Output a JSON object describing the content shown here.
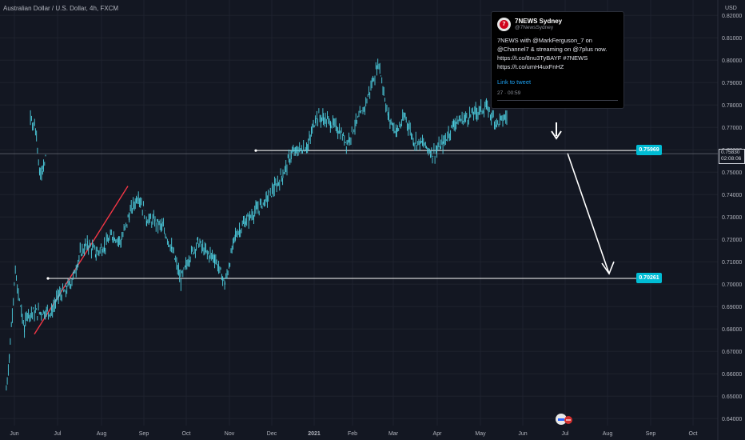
{
  "symbol_title": "Australian Dollar / U.S. Dollar, 4h, FXCM",
  "tweet": {
    "avatar": "7",
    "name": "7NEWS Sydney",
    "handle": "@7NewsSydney",
    "text": "7NEWS with @MarkFerguson_7 on @Channel7 & streaming on @7plus now. https://t.co/8nu3TyBAYF #7NEWS https://t.co/umH4uxFnHZ",
    "link": "Link to tweet",
    "time": "27 · 00:59"
  },
  "current_price": {
    "price": "0.75830",
    "countdown": "02:08:06"
  },
  "badges": {
    "upper": "0.75969",
    "lower": "0.70261"
  },
  "colors": {
    "background": "#131722",
    "candles": "#4dd0e1",
    "trendline": "#f23645",
    "annotation": "#ffffff",
    "badge": "#00bcd4"
  },
  "chart_data": {
    "type": "line",
    "title": "Australian Dollar / U.S. Dollar, 4h, FXCM",
    "ylabel": "USD",
    "ylim": [
      0.6375,
      0.8238
    ],
    "y_ticks": [
      "0.82000",
      "0.81000",
      "0.80000",
      "0.79000",
      "0.78000",
      "0.77000",
      "0.76000",
      "0.75000",
      "0.74000",
      "0.73000",
      "0.72000",
      "0.71000",
      "0.70000",
      "0.69000",
      "0.68000",
      "0.67000",
      "0.66000",
      "0.65000",
      "0.64000"
    ],
    "x_ticks": [
      "Jun",
      "Jul",
      "Aug",
      "Sep",
      "Oct",
      "Nov",
      "Dec",
      "2021",
      "Feb",
      "Mar",
      "Apr",
      "May",
      "Jun",
      "Jul",
      "Aug",
      "Sep",
      "Oct"
    ],
    "series": [
      {
        "points": [
          [
            "Jun",
            0.653
          ],
          [
            "Jun",
            0.668
          ],
          [
            "Jun",
            0.688
          ],
          [
            "Jun",
            0.705
          ],
          [
            "Jun",
            0.695
          ],
          [
            "Jun",
            0.688
          ],
          [
            "Jun",
            0.68
          ],
          [
            "Jun",
            0.687
          ],
          [
            "Jul",
            0.688
          ],
          [
            "Jul",
            0.695
          ],
          [
            "Jul",
            0.697
          ],
          [
            "Jul",
            0.703
          ],
          [
            "Jul",
            0.714
          ],
          [
            "Jul",
            0.718
          ],
          [
            "Aug",
            0.714
          ],
          [
            "Aug",
            0.717
          ],
          [
            "Aug",
            0.722
          ],
          [
            "Aug",
            0.719
          ],
          [
            "Aug",
            0.731
          ],
          [
            "Sep",
            0.74
          ],
          [
            "Sep",
            0.729
          ],
          [
            "Sep",
            0.728
          ],
          [
            "Sep",
            0.725
          ],
          [
            "Sep",
            0.716
          ],
          [
            "Oct",
            0.702
          ],
          [
            "Oct",
            0.712
          ],
          [
            "Oct",
            0.719
          ],
          [
            "Oct",
            0.714
          ],
          [
            "Oct",
            0.712
          ],
          [
            "Nov",
            0.7
          ],
          [
            "Nov",
            0.722
          ],
          [
            "Nov",
            0.728
          ],
          [
            "Nov",
            0.733
          ],
          [
            "Dec",
            0.738
          ],
          [
            "Dec",
            0.743
          ],
          [
            "Dec",
            0.749
          ],
          [
            "Dec",
            0.758
          ],
          [
            "Dec",
            0.76
          ],
          [
            "2021",
            0.762
          ],
          [
            "2021",
            0.775
          ],
          [
            "2021",
            0.774
          ],
          [
            "2021",
            0.772
          ],
          [
            "2021",
            0.769
          ],
          [
            "Feb",
            0.763
          ],
          [
            "Feb",
            0.771
          ],
          [
            "Feb",
            0.777
          ],
          [
            "Feb",
            0.788
          ],
          [
            "Feb",
            0.799
          ],
          [
            "Mar",
            0.775
          ],
          [
            "Mar",
            0.768
          ],
          [
            "Mar",
            0.775
          ],
          [
            "Mar",
            0.764
          ],
          [
            "Mar",
            0.763
          ],
          [
            "Apr",
            0.758
          ],
          [
            "Apr",
            0.763
          ],
          [
            "Apr",
            0.772
          ],
          [
            "Apr",
            0.774
          ],
          [
            "May",
            0.777
          ],
          [
            "May",
            0.779
          ],
          [
            "May",
            0.772
          ],
          [
            "May",
            0.775
          ],
          [
            "Jun",
            0.774
          ],
          [
            "Jun",
            0.773
          ],
          [
            "Jun",
            0.766
          ],
          [
            "Jun",
            0.749
          ],
          [
            "Jun",
            0.752
          ],
          [
            "Jun",
            0.758
          ]
        ]
      }
    ],
    "horizontal_levels": [
      0.75969,
      0.70261
    ],
    "trendline": {
      "from": [
        "Jun",
        0.6777
      ],
      "to": [
        "Sep",
        0.7438
      ]
    },
    "projection_arrow": {
      "from": [
        "Jul",
        0.7585
      ],
      "to": [
        "Aug",
        0.7026
      ]
    },
    "grid": true
  }
}
